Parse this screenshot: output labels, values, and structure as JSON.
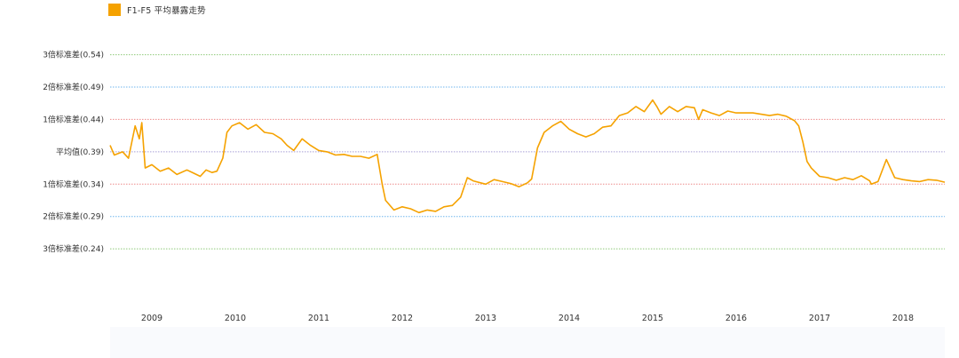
{
  "legend": {
    "label": "F1-F5 平均暴露走势",
    "color": "#f5a200"
  },
  "chart_data": {
    "type": "line",
    "xlim": [
      2008.5,
      2018.5
    ],
    "ylim": [
      0.21,
      0.56
    ],
    "x_tick_labels": [
      "2009",
      "2010",
      "2011",
      "2012",
      "2013",
      "2014",
      "2015",
      "2016",
      "2017",
      "2018"
    ],
    "reference_lines": [
      {
        "label": "3倍标准差(0.54)",
        "value": 0.54,
        "color": "#8fc97a"
      },
      {
        "label": "2倍标准差(0.49)",
        "value": 0.49,
        "color": "#6fb6ee"
      },
      {
        "label": "1倍标准差(0.44)",
        "value": 0.44,
        "color": "#ee8a8a"
      },
      {
        "label": "平均值(0.39)",
        "value": 0.39,
        "color": "#a89fd6"
      },
      {
        "label": "1倍标准差(0.34)",
        "value": 0.34,
        "color": "#ee8a8a"
      },
      {
        "label": "2倍标准差(0.29)",
        "value": 0.29,
        "color": "#6fb6ee"
      },
      {
        "label": "3倍标准差(0.24)",
        "value": 0.24,
        "color": "#8fc97a"
      }
    ],
    "series": [
      {
        "color": "#f5a200",
        "x": [
          2008.5,
          2008.55,
          2008.65,
          2008.72,
          2008.8,
          2008.85,
          2008.88,
          2008.92,
          2009.0,
          2009.1,
          2009.2,
          2009.3,
          2009.42,
          2009.5,
          2009.58,
          2009.65,
          2009.72,
          2009.78,
          2009.85,
          2009.9,
          2009.96,
          2010.05,
          2010.15,
          2010.25,
          2010.35,
          2010.45,
          2010.55,
          2010.62,
          2010.7,
          2010.8,
          2010.9,
          2011.0,
          2011.1,
          2011.2,
          2011.3,
          2011.4,
          2011.5,
          2011.6,
          2011.7,
          2011.72,
          2011.76,
          2011.8,
          2011.9,
          2012.0,
          2012.1,
          2012.2,
          2012.3,
          2012.4,
          2012.5,
          2012.6,
          2012.7,
          2012.78,
          2012.85,
          2013.0,
          2013.1,
          2013.2,
          2013.3,
          2013.4,
          2013.5,
          2013.55,
          2013.62,
          2013.7,
          2013.8,
          2013.9,
          2014.0,
          2014.1,
          2014.2,
          2014.3,
          2014.4,
          2014.5,
          2014.6,
          2014.7,
          2014.8,
          2014.9,
          2015.0,
          2015.05,
          2015.1,
          2015.2,
          2015.3,
          2015.4,
          2015.5,
          2015.55,
          2015.6,
          2015.7,
          2015.8,
          2015.9,
          2016.0,
          2016.1,
          2016.2,
          2016.3,
          2016.4,
          2016.5,
          2016.6,
          2016.7,
          2016.75,
          2016.8,
          2016.85,
          2016.9,
          2017.0,
          2017.1,
          2017.2,
          2017.3,
          2017.4,
          2017.5,
          2017.6,
          2017.62,
          2017.7,
          2017.8,
          2017.9,
          2018.0,
          2018.1,
          2018.2,
          2018.3,
          2018.4,
          2018.5
        ],
        "y": [
          0.4,
          0.385,
          0.39,
          0.38,
          0.43,
          0.41,
          0.435,
          0.365,
          0.37,
          0.36,
          0.365,
          0.355,
          0.362,
          0.357,
          0.352,
          0.362,
          0.358,
          0.36,
          0.38,
          0.42,
          0.43,
          0.435,
          0.425,
          0.432,
          0.42,
          0.418,
          0.41,
          0.4,
          0.392,
          0.41,
          0.4,
          0.392,
          0.39,
          0.385,
          0.386,
          0.383,
          0.383,
          0.38,
          0.386,
          0.37,
          0.34,
          0.315,
          0.3,
          0.305,
          0.302,
          0.296,
          0.3,
          0.298,
          0.305,
          0.307,
          0.32,
          0.35,
          0.345,
          0.34,
          0.347,
          0.344,
          0.341,
          0.336,
          0.342,
          0.348,
          0.396,
          0.42,
          0.43,
          0.437,
          0.425,
          0.418,
          0.413,
          0.418,
          0.428,
          0.43,
          0.446,
          0.45,
          0.46,
          0.452,
          0.47,
          0.46,
          0.448,
          0.46,
          0.452,
          0.46,
          0.458,
          0.44,
          0.455,
          0.45,
          0.446,
          0.453,
          0.45,
          0.45,
          0.45,
          0.448,
          0.446,
          0.448,
          0.445,
          0.438,
          0.43,
          0.405,
          0.375,
          0.365,
          0.352,
          0.35,
          0.346,
          0.35,
          0.347,
          0.353,
          0.345,
          0.34,
          0.344,
          0.378,
          0.35,
          0.347,
          0.345,
          0.344,
          0.347,
          0.346,
          0.343
        ]
      }
    ]
  }
}
